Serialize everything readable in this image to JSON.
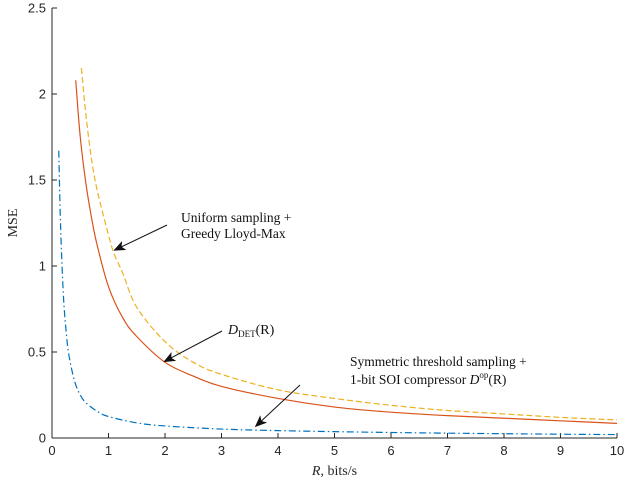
{
  "chart_data": {
    "type": "line",
    "title": "",
    "xlabel_italic": "R",
    "xlabel_rest": ",  bits/s",
    "ylabel": "MSE",
    "xlim": [
      0,
      10
    ],
    "ylim": [
      0,
      2.5
    ],
    "xticks": [
      "0",
      "1",
      "2",
      "3",
      "4",
      "5",
      "6",
      "7",
      "8",
      "9",
      "10"
    ],
    "yticks": [
      "0",
      "0.5",
      "1",
      "1.5",
      "2",
      "2.5"
    ],
    "grid": false,
    "legend": "none",
    "series": [
      {
        "style": "solid",
        "color": "#D95319",
        "x": [
          0.42,
          0.5,
          0.6,
          0.7,
          0.8,
          1.0,
          1.25,
          1.5,
          2.0,
          2.5,
          3.0,
          4.0,
          5.0,
          6.0,
          7.0,
          8.0,
          9.0,
          10.0
        ],
        "y": [
          2.08,
          1.75,
          1.48,
          1.28,
          1.12,
          0.88,
          0.7,
          0.59,
          0.44,
          0.36,
          0.3,
          0.23,
          0.18,
          0.15,
          0.13,
          0.115,
          0.1,
          0.085
        ]
      },
      {
        "style": "dashed",
        "color": "#EDB120",
        "x": [
          0.52,
          0.6,
          0.7,
          0.8,
          1.0,
          1.1,
          1.25,
          1.5,
          2.0,
          2.5,
          3.0,
          4.0,
          5.0,
          6.0,
          7.0,
          8.0,
          9.0,
          10.0
        ],
        "y": [
          2.15,
          1.88,
          1.62,
          1.44,
          1.18,
          1.07,
          0.96,
          0.76,
          0.56,
          0.44,
          0.37,
          0.28,
          0.23,
          0.19,
          0.16,
          0.14,
          0.12,
          0.105
        ]
      },
      {
        "style": "dashdot",
        "color": "#0072BD",
        "x": [
          0.12,
          0.15,
          0.2,
          0.25,
          0.3,
          0.4,
          0.5,
          0.6,
          0.8,
          1.0,
          1.5,
          2.0,
          3.0,
          4.0,
          5.0,
          6.0,
          7.0,
          8.0,
          9.0,
          10.0
        ],
        "y": [
          1.67,
          1.25,
          0.84,
          0.62,
          0.48,
          0.33,
          0.25,
          0.205,
          0.155,
          0.125,
          0.088,
          0.07,
          0.052,
          0.043,
          0.037,
          0.032,
          0.028,
          0.025,
          0.022,
          0.02
        ]
      }
    ],
    "annotations": [
      {
        "lines": [
          "Uniform sampling +",
          "Greedy Lloyd-Max"
        ],
        "arrow_to": [
          1.05,
          1.08
        ]
      },
      {
        "text": "D",
        "sub": "DET",
        "suffix": "(R)",
        "arrow_to": [
          1.95,
          0.45
        ]
      },
      {
        "lines": [
          "Symmetric threshold sampling +",
          "1-bit SOI compressor D"
        ],
        "sup": "op",
        "suffix": "(R)",
        "arrow_to": [
          3.55,
          0.05
        ]
      }
    ]
  }
}
